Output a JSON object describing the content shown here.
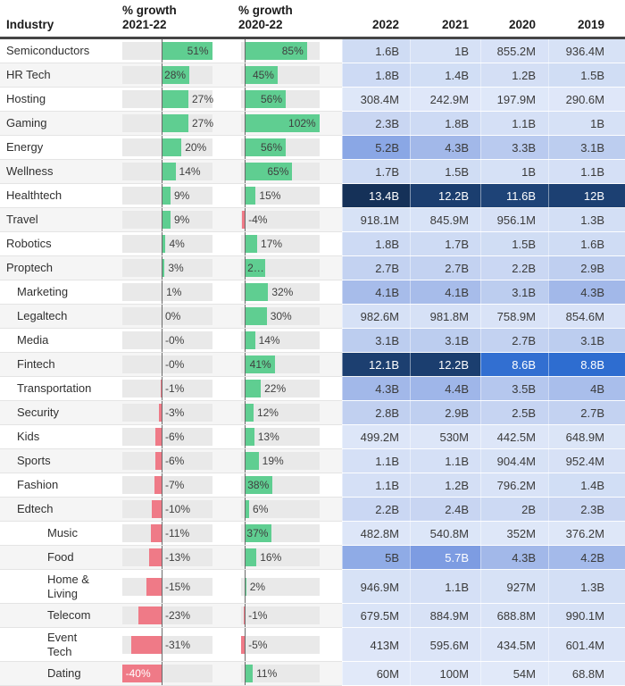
{
  "header": {
    "industry": "Industry",
    "growth1": "% growth\n2021-22",
    "growth2": "% growth\n2020-22",
    "years": [
      "2022",
      "2021",
      "2020",
      "2019"
    ]
  },
  "colors": {
    "bar_positive": "#5fce91",
    "bar_negative": "#ef7a87",
    "bar_track": "#e9e9e9",
    "baseline": "#6a6a6a",
    "header_border": "#454545",
    "row_band": "#f5f5f5",
    "row_separator": "#e4e4e4",
    "heat_stops": [
      [
        0,
        "#e2eafa"
      ],
      [
        100,
        "#e0e8f9"
      ],
      [
        500,
        "#dde6f8"
      ],
      [
        1000,
        "#d6e1f6"
      ],
      [
        1600,
        "#cfdcf4"
      ],
      [
        2400,
        "#c8d5f2"
      ],
      [
        3100,
        "#bccdef"
      ],
      [
        3500,
        "#b5c7ee"
      ],
      [
        4300,
        "#a2b8e9"
      ],
      [
        5000,
        "#8fabe6"
      ],
      [
        5700,
        "#7d9ce2"
      ],
      [
        7200,
        "#4f80d9"
      ],
      [
        8800,
        "#2e6dd0"
      ],
      [
        11600,
        "#1e4377"
      ],
      [
        12200,
        "#1b3e6f"
      ],
      [
        13400,
        "#153158"
      ]
    ],
    "heat_white_text_min_millions": 5500
  },
  "chart_data": {
    "type": "table",
    "title": "",
    "columns": [
      "Industry",
      "% growth 2021-22",
      "% growth 2020-22",
      "2022",
      "2021",
      "2020",
      "2019"
    ],
    "bar_axis": {
      "growth_2021_22": {
        "min": -40,
        "max": 51
      },
      "growth_2020_22": {
        "min": -5,
        "max": 102
      }
    },
    "rows": [
      {
        "industry": "Semiconductors",
        "indent": 0,
        "g1": {
          "v": 51,
          "label": "51%",
          "pos": "in"
        },
        "g2": {
          "v": 85,
          "label": "85%",
          "pos": "in"
        },
        "values": [
          {
            "t": "1.6B",
            "m": 1600
          },
          {
            "t": "1B",
            "m": 1000
          },
          {
            "t": "855.2M",
            "m": 855.2
          },
          {
            "t": "936.4M",
            "m": 936.4
          }
        ]
      },
      {
        "industry": "HR Tech",
        "indent": 0,
        "g1": {
          "v": 28,
          "label": "28%",
          "pos": "in"
        },
        "g2": {
          "v": 45,
          "label": "45%",
          "pos": "in"
        },
        "values": [
          {
            "t": "1.8B",
            "m": 1800
          },
          {
            "t": "1.4B",
            "m": 1400
          },
          {
            "t": "1.2B",
            "m": 1200
          },
          {
            "t": "1.5B",
            "m": 1500
          }
        ]
      },
      {
        "industry": "Hosting",
        "indent": 0,
        "g1": {
          "v": 27,
          "label": "27%",
          "pos": "out"
        },
        "g2": {
          "v": 56,
          "label": "56%",
          "pos": "in"
        },
        "values": [
          {
            "t": "308.4M",
            "m": 308.4
          },
          {
            "t": "242.9M",
            "m": 242.9
          },
          {
            "t": "197.9M",
            "m": 197.9
          },
          {
            "t": "290.6M",
            "m": 290.6
          }
        ]
      },
      {
        "industry": "Gaming",
        "indent": 0,
        "g1": {
          "v": 27,
          "label": "27%",
          "pos": "out"
        },
        "g2": {
          "v": 102,
          "label": "102%",
          "pos": "in"
        },
        "values": [
          {
            "t": "2.3B",
            "m": 2300
          },
          {
            "t": "1.8B",
            "m": 1800
          },
          {
            "t": "1.1B",
            "m": 1100
          },
          {
            "t": "1B",
            "m": 1000
          }
        ]
      },
      {
        "industry": "Energy",
        "indent": 0,
        "g1": {
          "v": 20,
          "label": "20%",
          "pos": "out"
        },
        "g2": {
          "v": 56,
          "label": "56%",
          "pos": "in"
        },
        "values": [
          {
            "t": "5.2B",
            "m": 5200
          },
          {
            "t": "4.3B",
            "m": 4300
          },
          {
            "t": "3.3B",
            "m": 3300
          },
          {
            "t": "3.1B",
            "m": 3100
          }
        ]
      },
      {
        "industry": "Wellness",
        "indent": 0,
        "g1": {
          "v": 14,
          "label": "14%",
          "pos": "out"
        },
        "g2": {
          "v": 65,
          "label": "65%",
          "pos": "in"
        },
        "values": [
          {
            "t": "1.7B",
            "m": 1700
          },
          {
            "t": "1.5B",
            "m": 1500
          },
          {
            "t": "1B",
            "m": 1000
          },
          {
            "t": "1.1B",
            "m": 1100
          }
        ]
      },
      {
        "industry": "Healthtech",
        "indent": 0,
        "g1": {
          "v": 9,
          "label": "9%",
          "pos": "out"
        },
        "g2": {
          "v": 15,
          "label": "15%",
          "pos": "out"
        },
        "values": [
          {
            "t": "13.4B",
            "m": 13400
          },
          {
            "t": "12.2B",
            "m": 12200
          },
          {
            "t": "11.6B",
            "m": 11600
          },
          {
            "t": "12B",
            "m": 12000
          }
        ]
      },
      {
        "industry": "Travel",
        "indent": 0,
        "g1": {
          "v": 9,
          "label": "9%",
          "pos": "out"
        },
        "g2": {
          "v": -4,
          "label": "-4%",
          "pos": "out"
        },
        "values": [
          {
            "t": "918.1M",
            "m": 918.1
          },
          {
            "t": "845.9M",
            "m": 845.9
          },
          {
            "t": "956.1M",
            "m": 956.1
          },
          {
            "t": "1.3B",
            "m": 1300
          }
        ]
      },
      {
        "industry": "Robotics",
        "indent": 0,
        "g1": {
          "v": 4,
          "label": "4%",
          "pos": "out"
        },
        "g2": {
          "v": 17,
          "label": "17%",
          "pos": "out"
        },
        "values": [
          {
            "t": "1.8B",
            "m": 1800
          },
          {
            "t": "1.7B",
            "m": 1700
          },
          {
            "t": "1.5B",
            "m": 1500
          },
          {
            "t": "1.6B",
            "m": 1600
          }
        ]
      },
      {
        "industry": "Proptech",
        "indent": 0,
        "g1": {
          "v": 3,
          "label": "3%",
          "pos": "out"
        },
        "g2": {
          "v": 28,
          "label": "2…",
          "pos": "in_left"
        },
        "values": [
          {
            "t": "2.7B",
            "m": 2700
          },
          {
            "t": "2.7B",
            "m": 2700
          },
          {
            "t": "2.2B",
            "m": 2200
          },
          {
            "t": "2.9B",
            "m": 2900
          }
        ]
      },
      {
        "industry": "Marketing",
        "indent": 1,
        "g1": {
          "v": 1,
          "label": "1%",
          "pos": "out"
        },
        "g2": {
          "v": 32,
          "label": "32%",
          "pos": "out"
        },
        "values": [
          {
            "t": "4.1B",
            "m": 4100
          },
          {
            "t": "4.1B",
            "m": 4100
          },
          {
            "t": "3.1B",
            "m": 3100
          },
          {
            "t": "4.3B",
            "m": 4300
          }
        ]
      },
      {
        "industry": "Legaltech",
        "indent": 1,
        "g1": {
          "v": 0,
          "label": "0%",
          "pos": "out"
        },
        "g2": {
          "v": 30,
          "label": "30%",
          "pos": "out"
        },
        "values": [
          {
            "t": "982.6M",
            "m": 982.6
          },
          {
            "t": "981.8M",
            "m": 981.8
          },
          {
            "t": "758.9M",
            "m": 758.9
          },
          {
            "t": "854.6M",
            "m": 854.6
          }
        ]
      },
      {
        "industry": "Media",
        "indent": 1,
        "g1": {
          "v": 0,
          "label": "-0%",
          "pos": "out"
        },
        "g2": {
          "v": 14,
          "label": "14%",
          "pos": "out"
        },
        "values": [
          {
            "t": "3.1B",
            "m": 3100
          },
          {
            "t": "3.1B",
            "m": 3100
          },
          {
            "t": "2.7B",
            "m": 2700
          },
          {
            "t": "3.1B",
            "m": 3100
          }
        ]
      },
      {
        "industry": "Fintech",
        "indent": 1,
        "g1": {
          "v": 0,
          "label": "-0%",
          "pos": "out"
        },
        "g2": {
          "v": 41,
          "label": "41%",
          "pos": "in"
        },
        "values": [
          {
            "t": "12.1B",
            "m": 12100
          },
          {
            "t": "12.2B",
            "m": 12200
          },
          {
            "t": "8.6B",
            "m": 8600
          },
          {
            "t": "8.8B",
            "m": 8800
          }
        ]
      },
      {
        "industry": "Transportation",
        "indent": 1,
        "g1": {
          "v": -1,
          "label": "-1%",
          "pos": "out"
        },
        "g2": {
          "v": 22,
          "label": "22%",
          "pos": "out"
        },
        "values": [
          {
            "t": "4.3B",
            "m": 4300
          },
          {
            "t": "4.4B",
            "m": 4400
          },
          {
            "t": "3.5B",
            "m": 3500
          },
          {
            "t": "4B",
            "m": 4000
          }
        ]
      },
      {
        "industry": "Security",
        "indent": 1,
        "g1": {
          "v": -3,
          "label": "-3%",
          "pos": "out"
        },
        "g2": {
          "v": 12,
          "label": "12%",
          "pos": "out"
        },
        "values": [
          {
            "t": "2.8B",
            "m": 2800
          },
          {
            "t": "2.9B",
            "m": 2900
          },
          {
            "t": "2.5B",
            "m": 2500
          },
          {
            "t": "2.7B",
            "m": 2700
          }
        ]
      },
      {
        "industry": "Kids",
        "indent": 1,
        "g1": {
          "v": -6,
          "label": "-6%",
          "pos": "out"
        },
        "g2": {
          "v": 13,
          "label": "13%",
          "pos": "out"
        },
        "values": [
          {
            "t": "499.2M",
            "m": 499.2
          },
          {
            "t": "530M",
            "m": 530
          },
          {
            "t": "442.5M",
            "m": 442.5
          },
          {
            "t": "648.9M",
            "m": 648.9
          }
        ]
      },
      {
        "industry": "Sports",
        "indent": 1,
        "g1": {
          "v": -6,
          "label": "-6%",
          "pos": "out"
        },
        "g2": {
          "v": 19,
          "label": "19%",
          "pos": "out"
        },
        "values": [
          {
            "t": "1.1B",
            "m": 1100
          },
          {
            "t": "1.1B",
            "m": 1100
          },
          {
            "t": "904.4M",
            "m": 904.4
          },
          {
            "t": "952.4M",
            "m": 952.4
          }
        ]
      },
      {
        "industry": "Fashion",
        "indent": 1,
        "g1": {
          "v": -7,
          "label": "-7%",
          "pos": "out"
        },
        "g2": {
          "v": 38,
          "label": "38%",
          "pos": "in"
        },
        "values": [
          {
            "t": "1.1B",
            "m": 1100
          },
          {
            "t": "1.2B",
            "m": 1200
          },
          {
            "t": "796.2M",
            "m": 796.2
          },
          {
            "t": "1.4B",
            "m": 1400
          }
        ]
      },
      {
        "industry": "Edtech",
        "indent": 1,
        "g1": {
          "v": -10,
          "label": "-10%",
          "pos": "out"
        },
        "g2": {
          "v": 6,
          "label": "6%",
          "pos": "out"
        },
        "values": [
          {
            "t": "2.2B",
            "m": 2200
          },
          {
            "t": "2.4B",
            "m": 2400
          },
          {
            "t": "2B",
            "m": 2000
          },
          {
            "t": "2.3B",
            "m": 2300
          }
        ]
      },
      {
        "industry": "Music",
        "indent": 2,
        "g1": {
          "v": -11,
          "label": "-11%",
          "pos": "out"
        },
        "g2": {
          "v": 37,
          "label": "37%",
          "pos": "in"
        },
        "values": [
          {
            "t": "482.8M",
            "m": 482.8
          },
          {
            "t": "540.8M",
            "m": 540.8
          },
          {
            "t": "352M",
            "m": 352
          },
          {
            "t": "376.2M",
            "m": 376.2
          }
        ]
      },
      {
        "industry": "Food",
        "indent": 2,
        "g1": {
          "v": -13,
          "label": "-13%",
          "pos": "out"
        },
        "g2": {
          "v": 16,
          "label": "16%",
          "pos": "out"
        },
        "values": [
          {
            "t": "5B",
            "m": 5000
          },
          {
            "t": "5.7B",
            "m": 5700
          },
          {
            "t": "4.3B",
            "m": 4300
          },
          {
            "t": "4.2B",
            "m": 4200
          }
        ]
      },
      {
        "industry": "Home & Living",
        "indent": 2,
        "tall": true,
        "g1": {
          "v": -15,
          "label": "-15%",
          "pos": "out"
        },
        "g2": {
          "v": 2,
          "label": "2%",
          "pos": "out"
        },
        "values": [
          {
            "t": "946.9M",
            "m": 946.9
          },
          {
            "t": "1.1B",
            "m": 1100
          },
          {
            "t": "927M",
            "m": 927
          },
          {
            "t": "1.3B",
            "m": 1300
          }
        ]
      },
      {
        "industry": "Telecom",
        "indent": 2,
        "g1": {
          "v": -23,
          "label": "-23%",
          "pos": "out"
        },
        "g2": {
          "v": -1,
          "label": "-1%",
          "pos": "out"
        },
        "values": [
          {
            "t": "679.5M",
            "m": 679.5
          },
          {
            "t": "884.9M",
            "m": 884.9
          },
          {
            "t": "688.8M",
            "m": 688.8
          },
          {
            "t": "990.1M",
            "m": 990.1
          }
        ]
      },
      {
        "industry": "Event Tech",
        "indent": 2,
        "tall": true,
        "wrap": true,
        "g1": {
          "v": -31,
          "label": "-31%",
          "pos": "out"
        },
        "g2": {
          "v": -5,
          "label": "-5%",
          "pos": "out"
        },
        "values": [
          {
            "t": "413M",
            "m": 413
          },
          {
            "t": "595.6M",
            "m": 595.6
          },
          {
            "t": "434.5M",
            "m": 434.5
          },
          {
            "t": "601.4M",
            "m": 601.4
          }
        ]
      },
      {
        "industry": "Dating",
        "indent": 2,
        "g1": {
          "v": -40,
          "label": "-40%",
          "pos": "in_white"
        },
        "g2": {
          "v": 11,
          "label": "11%",
          "pos": "out"
        },
        "values": [
          {
            "t": "60M",
            "m": 60
          },
          {
            "t": "100M",
            "m": 100
          },
          {
            "t": "54M",
            "m": 54
          },
          {
            "t": "68.8M",
            "m": 68.8
          }
        ]
      }
    ]
  }
}
